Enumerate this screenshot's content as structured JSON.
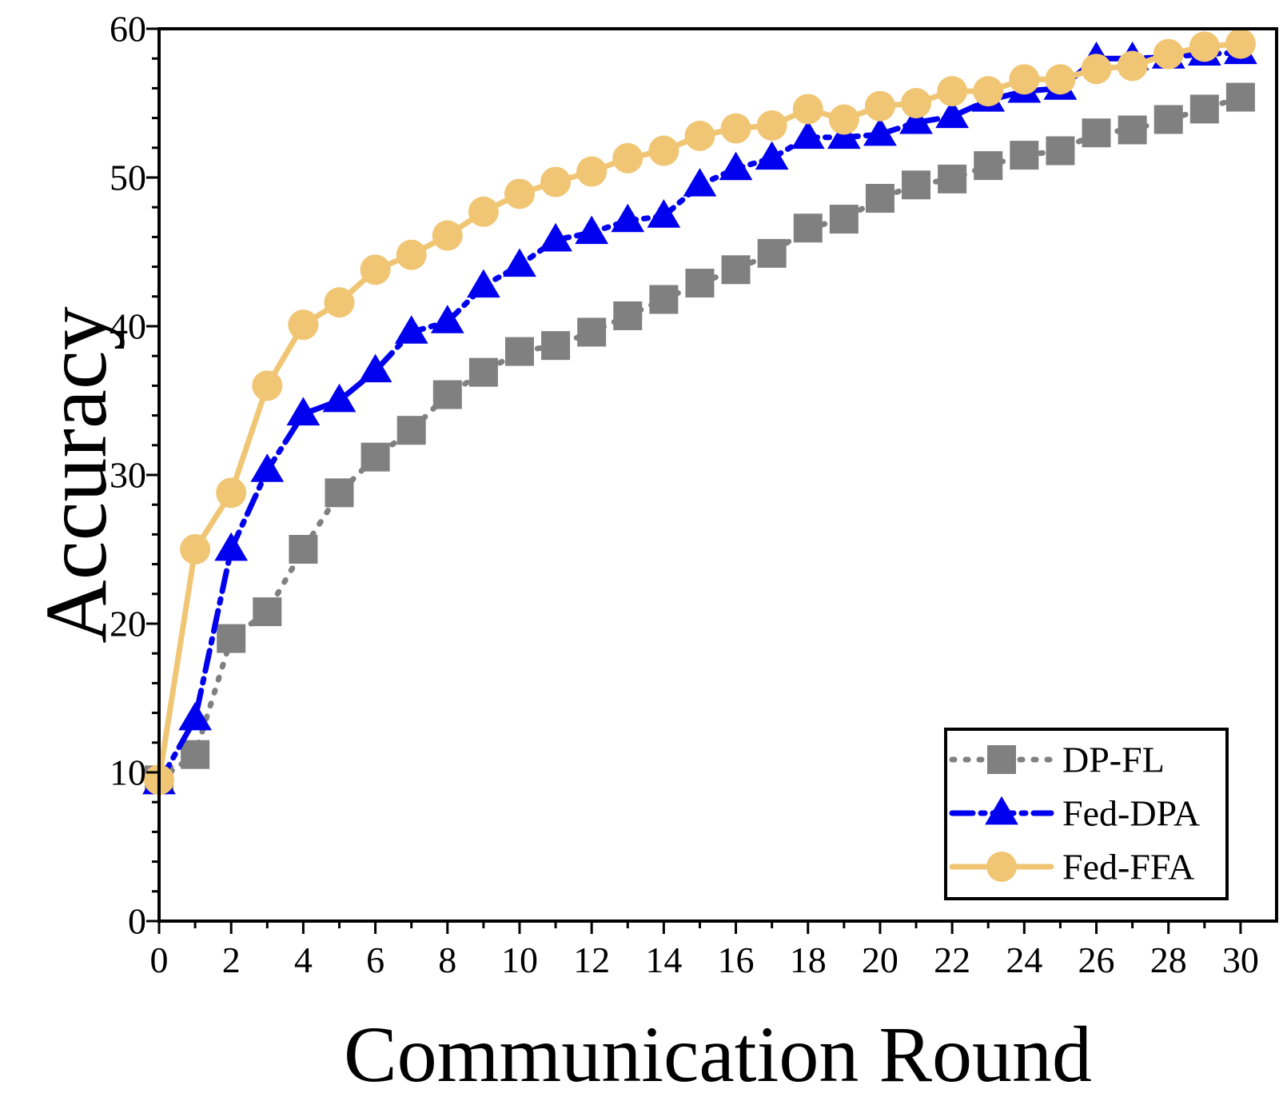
{
  "chart_data": {
    "type": "line",
    "xlabel": "Communication Round",
    "ylabel": "Accuracy",
    "xlim": [
      0,
      31
    ],
    "ylim": [
      0,
      60
    ],
    "xticks": [
      0,
      2,
      4,
      6,
      8,
      10,
      12,
      14,
      16,
      18,
      20,
      22,
      24,
      26,
      28,
      30
    ],
    "yticks": [
      0,
      10,
      20,
      30,
      40,
      50,
      60
    ],
    "grid": false,
    "legend_position": "bottom-right",
    "x": [
      0,
      1,
      2,
      3,
      4,
      5,
      6,
      7,
      8,
      9,
      10,
      11,
      12,
      13,
      14,
      15,
      16,
      17,
      18,
      19,
      20,
      21,
      22,
      23,
      24,
      25,
      26,
      27,
      28,
      29,
      30
    ],
    "series": [
      {
        "name": "DP-FL",
        "color": "#808080",
        "line_style": "dotted",
        "marker": "square",
        "values": [
          9.5,
          11.2,
          19.0,
          20.8,
          25.0,
          28.8,
          31.2,
          33.0,
          35.4,
          36.9,
          38.3,
          38.7,
          39.6,
          40.7,
          41.8,
          42.9,
          43.8,
          44.9,
          46.6,
          47.2,
          48.6,
          49.5,
          49.9,
          50.8,
          51.5,
          51.8,
          53.0,
          53.2,
          53.9,
          54.6,
          55.4
        ]
      },
      {
        "name": "Fed-DPA",
        "color": "#0000ee",
        "line_style": "dashdot",
        "marker": "triangle",
        "values": [
          9.3,
          13.6,
          25.0,
          30.3,
          34.1,
          35.0,
          37.0,
          39.6,
          40.3,
          42.7,
          44.1,
          45.8,
          46.3,
          47.1,
          47.4,
          49.5,
          50.6,
          51.3,
          52.7,
          52.7,
          52.9,
          53.7,
          54.1,
          55.2,
          55.8,
          56.0,
          58.0,
          58.0,
          58.1,
          58.3,
          58.4
        ]
      },
      {
        "name": "Fed-FFA",
        "color": "#f0c674",
        "line_style": "solid",
        "marker": "circle",
        "values": [
          9.5,
          25.0,
          28.8,
          36.0,
          40.1,
          41.6,
          43.8,
          44.8,
          46.1,
          47.7,
          48.9,
          49.7,
          50.4,
          51.3,
          51.8,
          52.8,
          53.3,
          53.5,
          54.6,
          53.9,
          54.8,
          55.0,
          55.8,
          55.8,
          56.6,
          56.6,
          57.3,
          57.5,
          58.3,
          58.8,
          59.0
        ]
      }
    ]
  }
}
